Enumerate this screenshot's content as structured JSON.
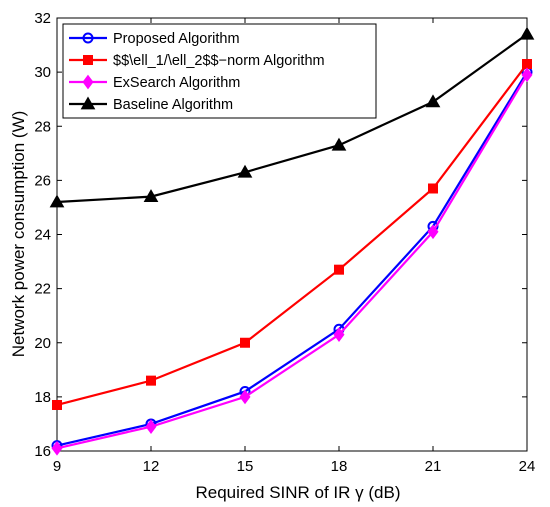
{
  "chart_data": {
    "type": "line",
    "title": "",
    "xlabel": "Required SINR of IR γ (dB)",
    "ylabel": "Network power consumption (W)",
    "x": [
      9,
      12,
      15,
      18,
      21,
      24
    ],
    "xlim": [
      9,
      24
    ],
    "ylim": [
      16,
      32
    ],
    "xticks": [
      9,
      12,
      15,
      18,
      21,
      24
    ],
    "yticks": [
      16,
      18,
      20,
      22,
      24,
      26,
      28,
      30,
      32
    ],
    "grid": false,
    "legend_position": "top-left",
    "series": [
      {
        "name": "Proposed Algorithm",
        "color": "#0000ff",
        "marker": "circle",
        "values": [
          16.2,
          17.0,
          18.2,
          20.5,
          24.3,
          30.0
        ]
      },
      {
        "name": "$$\\ell_1/\\ell_2$$−norm Algorithm",
        "color": "#ff0000",
        "marker": "square",
        "values": [
          17.7,
          18.6,
          20.0,
          22.7,
          25.7,
          30.3
        ]
      },
      {
        "name": "ExSearch Algorithm",
        "color": "#ff00ff",
        "marker": "diamond",
        "values": [
          16.1,
          16.9,
          18.0,
          20.3,
          24.1,
          29.9
        ]
      },
      {
        "name": "Baseline Algorithm",
        "color": "#000000",
        "marker": "triangle",
        "values": [
          25.2,
          25.4,
          26.3,
          27.3,
          28.9,
          31.4
        ]
      }
    ]
  }
}
